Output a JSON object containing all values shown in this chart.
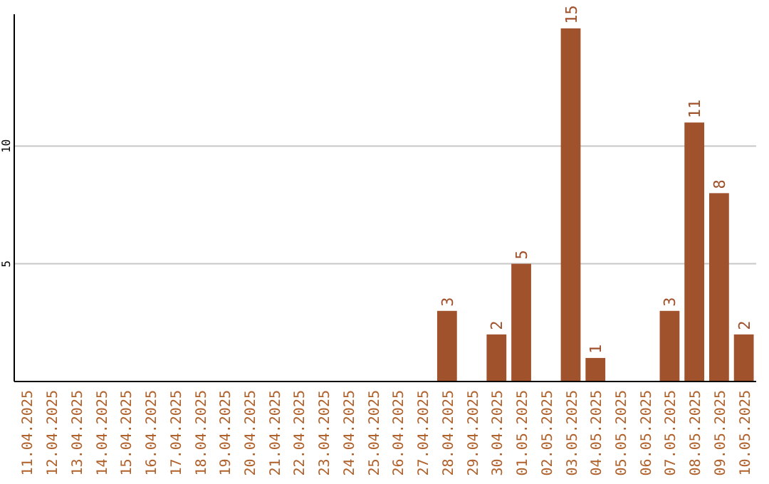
{
  "chart_data": {
    "type": "bar",
    "categories": [
      "11.04.2025",
      "12.04.2025",
      "13.04.2025",
      "14.04.2025",
      "15.04.2025",
      "16.04.2025",
      "17.04.2025",
      "18.04.2025",
      "19.04.2025",
      "20.04.2025",
      "21.04.2025",
      "22.04.2025",
      "23.04.2025",
      "24.04.2025",
      "25.04.2025",
      "26.04.2025",
      "27.04.2025",
      "28.04.2025",
      "29.04.2025",
      "30.04.2025",
      "01.05.2025",
      "02.05.2025",
      "03.05.2025",
      "04.05.2025",
      "05.05.2025",
      "06.05.2025",
      "07.05.2025",
      "08.05.2025",
      "09.05.2025",
      "10.05.2025"
    ],
    "values": [
      null,
      null,
      null,
      null,
      null,
      null,
      null,
      null,
      null,
      null,
      null,
      null,
      null,
      null,
      null,
      null,
      null,
      3,
      null,
      2,
      5,
      null,
      15,
      1,
      null,
      null,
      3,
      11,
      8,
      2
    ],
    "color": "#a0522d",
    "ylim": [
      0,
      15.6
    ],
    "yticks": [
      5,
      10
    ],
    "grid": "y",
    "data_labels": true
  }
}
